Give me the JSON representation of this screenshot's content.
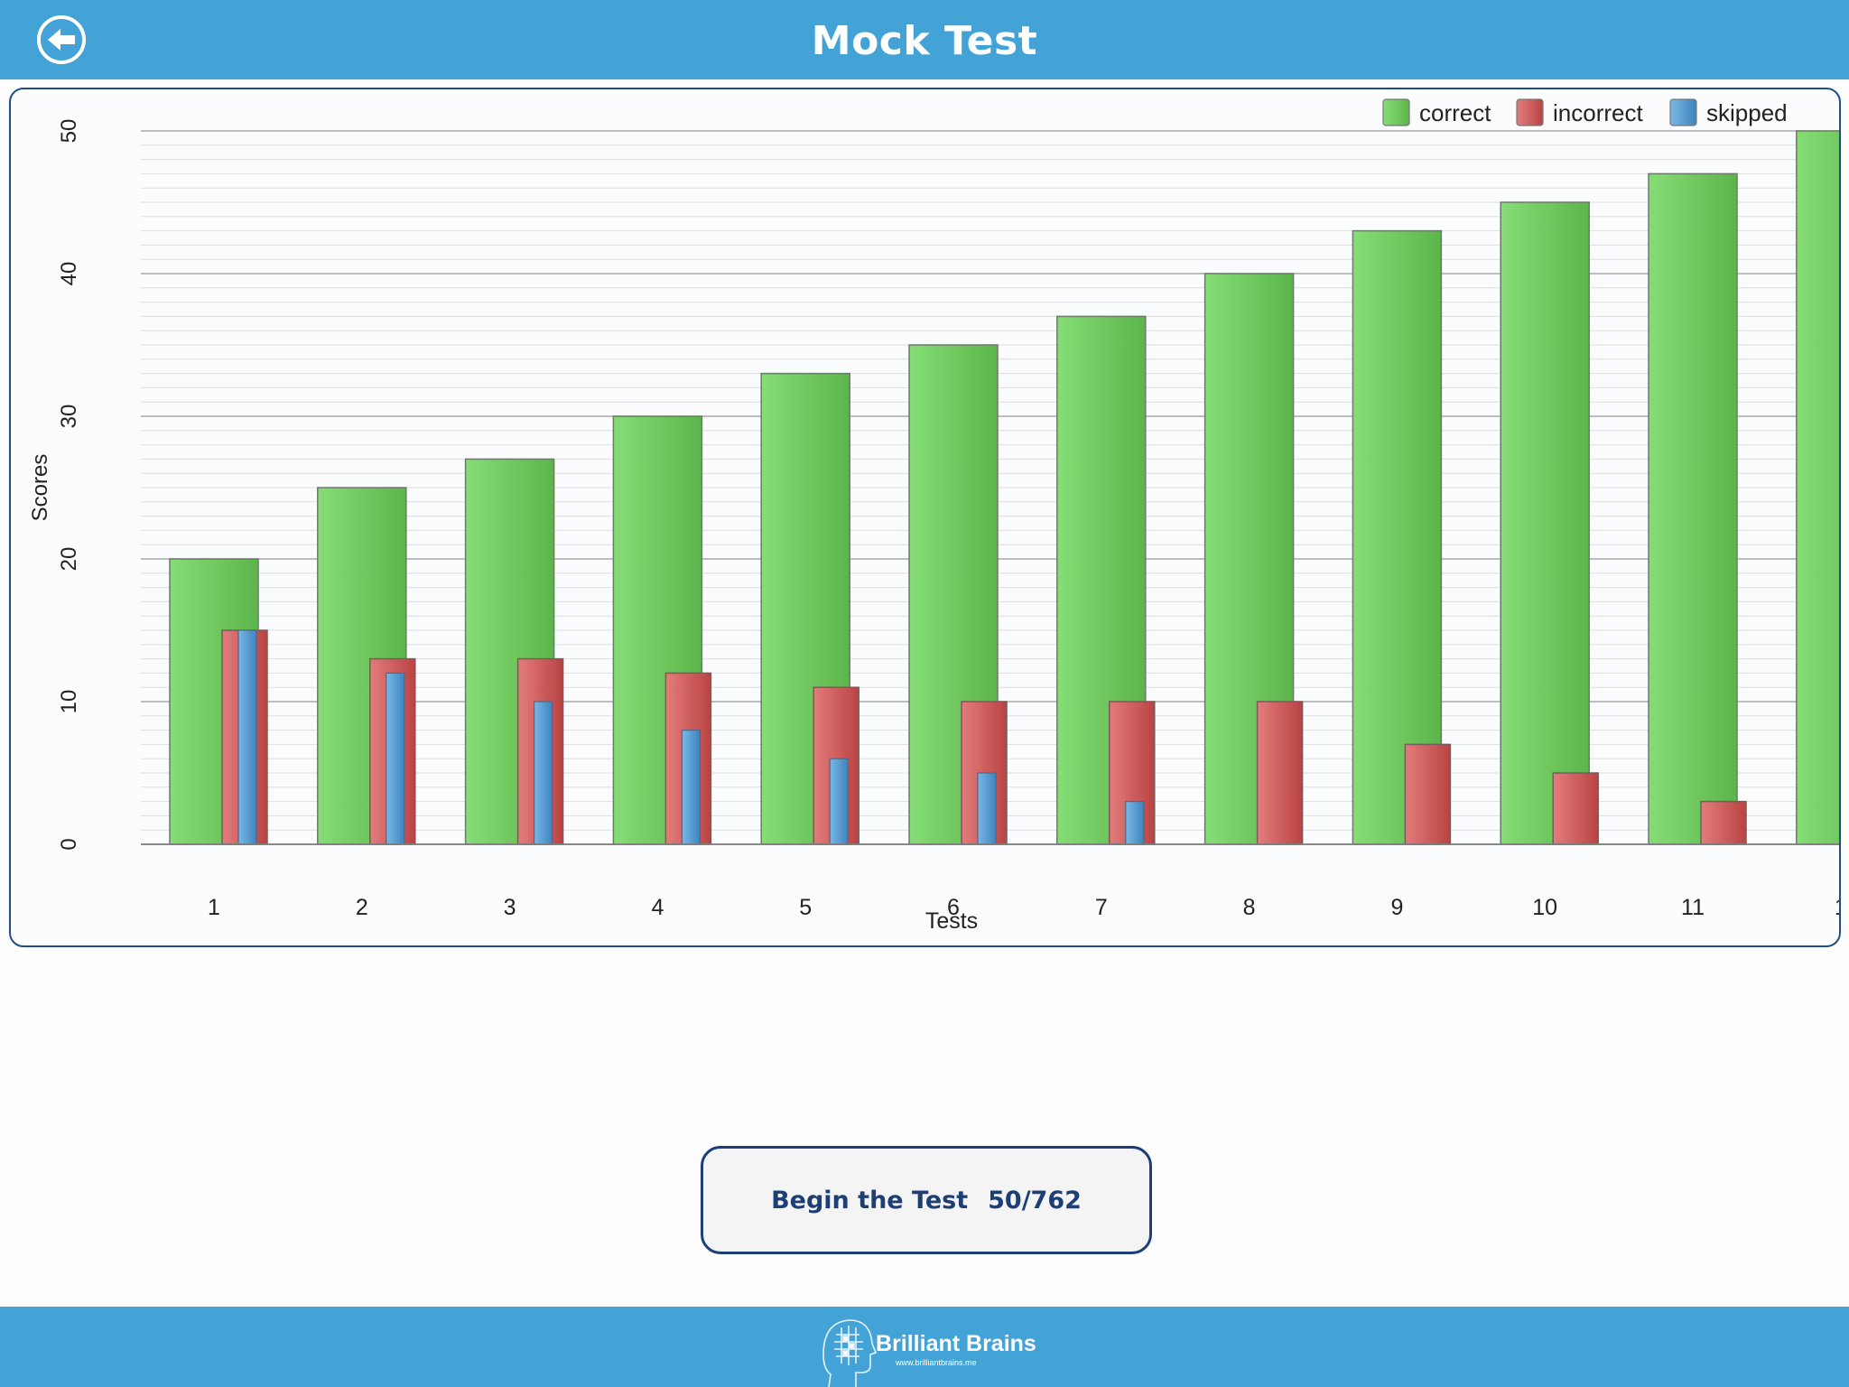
{
  "header": {
    "title": "Mock Test",
    "back_icon": "arrow-left-circle-icon"
  },
  "colors": {
    "header_bg": "#44a3d6",
    "correct": "#6fcd5f",
    "incorrect": "#d95a5a",
    "skipped": "#5a9fd4",
    "button_border": "#1d3f78",
    "button_text": "#1e3f76"
  },
  "chart_data": {
    "type": "bar",
    "x_label": "Tests",
    "y_label": "Scores",
    "ylim": [
      0,
      50
    ],
    "y_ticks": [
      "0",
      "10",
      "20",
      "30",
      "40",
      "50"
    ],
    "grid": true,
    "legend_position": "top-right",
    "categories": [
      "1",
      "2",
      "3",
      "4",
      "5",
      "6",
      "7",
      "8",
      "9",
      "10",
      "11",
      "1"
    ],
    "series": [
      {
        "name": "correct",
        "values": [
          20,
          25,
          27,
          30,
          33,
          35,
          37,
          40,
          43,
          45,
          47,
          50
        ]
      },
      {
        "name": "incorrect",
        "values": [
          15,
          13,
          13,
          12,
          11,
          10,
          10,
          10,
          7,
          5,
          3,
          0
        ]
      },
      {
        "name": "skipped",
        "values": [
          15,
          12,
          10,
          8,
          6,
          5,
          3,
          0,
          0,
          0,
          0,
          0
        ]
      }
    ]
  },
  "actions": {
    "begin_label": "Begin the Test",
    "begin_count": "50/762"
  },
  "footer": {
    "brand_name": "Brilliant Brains",
    "brand_url": "www.brilliantbrains.me",
    "logo_icon": "brain-head-logo"
  }
}
